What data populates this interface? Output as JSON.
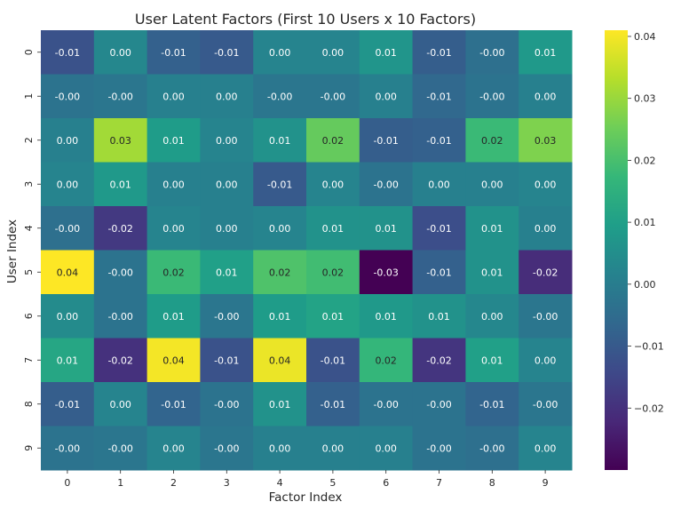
{
  "chart_data": {
    "type": "heatmap",
    "title": "User Latent Factors (First 10 Users x 10 Factors)",
    "xlabel": "Factor Index",
    "ylabel": "User Index",
    "x_categories": [
      "0",
      "1",
      "2",
      "3",
      "4",
      "5",
      "6",
      "7",
      "8",
      "9"
    ],
    "y_categories": [
      "0",
      "1",
      "2",
      "3",
      "4",
      "5",
      "6",
      "7",
      "8",
      "9"
    ],
    "values": [
      [
        -0.01,
        0.0,
        -0.01,
        -0.01,
        0.0,
        0.0,
        0.01,
        -0.01,
        -0.0,
        0.01
      ],
      [
        -0.0,
        -0.0,
        0.0,
        0.0,
        -0.0,
        -0.0,
        0.0,
        -0.01,
        -0.0,
        0.0
      ],
      [
        0.0,
        0.03,
        0.01,
        0.0,
        0.01,
        0.02,
        -0.01,
        -0.01,
        0.02,
        0.03
      ],
      [
        0.0,
        0.01,
        0.0,
        0.0,
        -0.01,
        0.0,
        -0.0,
        0.0,
        0.0,
        0.0
      ],
      [
        -0.0,
        -0.02,
        0.0,
        0.0,
        0.0,
        0.01,
        0.01,
        -0.01,
        0.01,
        0.0
      ],
      [
        0.04,
        -0.0,
        0.02,
        0.01,
        0.02,
        0.02,
        -0.03,
        -0.01,
        0.01,
        -0.02
      ],
      [
        0.0,
        -0.0,
        0.01,
        -0.0,
        0.01,
        0.01,
        0.01,
        0.01,
        0.0,
        -0.0
      ],
      [
        0.01,
        -0.02,
        0.04,
        -0.01,
        0.04,
        -0.01,
        0.02,
        -0.02,
        0.01,
        0.0
      ],
      [
        -0.01,
        0.0,
        -0.01,
        -0.0,
        0.01,
        -0.01,
        -0.0,
        -0.0,
        -0.01,
        -0.0
      ],
      [
        -0.0,
        -0.0,
        0.0,
        -0.0,
        0.0,
        0.0,
        0.0,
        -0.0,
        -0.0,
        0.0
      ]
    ],
    "cell_labels": [
      [
        "-0.01",
        "0.00",
        "-0.01",
        "-0.01",
        "0.00",
        "0.00",
        "0.01",
        "-0.01",
        "-0.00",
        "0.01"
      ],
      [
        "-0.00",
        "-0.00",
        "0.00",
        "0.00",
        "-0.00",
        "-0.00",
        "0.00",
        "-0.01",
        "-0.00",
        "0.00"
      ],
      [
        "0.00",
        "0.03",
        "0.01",
        "0.00",
        "0.01",
        "0.02",
        "-0.01",
        "-0.01",
        "0.02",
        "0.03"
      ],
      [
        "0.00",
        "0.01",
        "0.00",
        "0.00",
        "-0.01",
        "0.00",
        "-0.00",
        "0.00",
        "0.00",
        "0.00"
      ],
      [
        "-0.00",
        "-0.02",
        "0.00",
        "0.00",
        "0.00",
        "0.01",
        "0.01",
        "-0.01",
        "0.01",
        "0.00"
      ],
      [
        "0.04",
        "-0.00",
        "0.02",
        "0.01",
        "0.02",
        "0.02",
        "-0.03",
        "-0.01",
        "0.01",
        "-0.02"
      ],
      [
        "0.00",
        "-0.00",
        "0.01",
        "-0.00",
        "0.01",
        "0.01",
        "0.01",
        "0.01",
        "0.00",
        "-0.00"
      ],
      [
        "0.01",
        "-0.02",
        "0.04",
        "-0.01",
        "0.04",
        "-0.01",
        "0.02",
        "-0.02",
        "0.01",
        "0.00"
      ],
      [
        "-0.01",
        "0.00",
        "-0.01",
        "-0.00",
        "0.01",
        "-0.01",
        "-0.00",
        "-0.00",
        "-0.01",
        "-0.00"
      ],
      [
        "-0.00",
        "-0.00",
        "0.00",
        "-0.00",
        "0.00",
        "0.00",
        "0.00",
        "-0.00",
        "-0.00",
        "0.00"
      ]
    ],
    "shades": [
      [
        -0.012,
        0.003,
        -0.008,
        -0.01,
        0.002,
        0.002,
        0.007,
        -0.009,
        -0.004,
        0.008
      ],
      [
        -0.003,
        -0.002,
        0.001,
        0.001,
        -0.002,
        -0.002,
        0.001,
        -0.006,
        -0.003,
        0.001
      ],
      [
        0.001,
        0.031,
        0.009,
        0.002,
        0.006,
        0.024,
        -0.009,
        -0.008,
        0.018,
        0.027
      ],
      [
        0.002,
        0.008,
        0.001,
        0.001,
        -0.01,
        0.002,
        -0.003,
        0.001,
        0.001,
        0.002
      ],
      [
        -0.004,
        -0.018,
        0.002,
        0.001,
        0.002,
        0.006,
        0.006,
        -0.013,
        0.006,
        0.001
      ],
      [
        0.041,
        -0.003,
        0.018,
        0.01,
        0.021,
        0.019,
        -0.03,
        -0.008,
        0.006,
        -0.021
      ],
      [
        0.004,
        -0.003,
        0.009,
        -0.002,
        0.009,
        0.011,
        0.008,
        0.006,
        0.003,
        -0.002
      ],
      [
        0.012,
        -0.02,
        0.04,
        -0.012,
        0.039,
        -0.012,
        0.017,
        -0.019,
        0.01,
        0.002
      ],
      [
        -0.009,
        0.002,
        -0.007,
        -0.003,
        0.006,
        -0.008,
        -0.003,
        -0.003,
        -0.007,
        -0.002
      ],
      [
        -0.003,
        -0.002,
        0.002,
        -0.002,
        0.001,
        0.001,
        0.001,
        -0.003,
        -0.004,
        0.002
      ]
    ],
    "colormap": "viridis",
    "color_range": [
      -0.03,
      0.041
    ],
    "colorbar_ticks": [
      0.04,
      0.03,
      0.02,
      0.01,
      0.0,
      -0.01,
      -0.02
    ],
    "colorbar_tick_labels": [
      "0.04",
      "0.03",
      "0.02",
      "0.01",
      "0.00",
      "−0.01",
      "−0.02"
    ],
    "colors": {
      "viridis": [
        "#440154",
        "#482878",
        "#3e4989",
        "#31688e",
        "#26828e",
        "#1f9e89",
        "#35b779",
        "#6ece58",
        "#b5de2b",
        "#fde725"
      ],
      "text_dark": "#262626",
      "text_light": "#ffffff"
    }
  }
}
